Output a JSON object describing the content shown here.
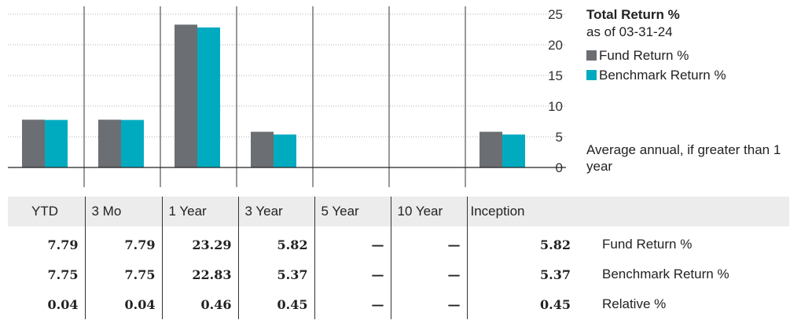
{
  "legend": {
    "title": "Total Return %",
    "subtitle": "as of 03-31-24",
    "items": [
      {
        "label": "Fund Return %",
        "color": "#6b6e72"
      },
      {
        "label": "Benchmark Return %",
        "color": "#00abc0"
      }
    ],
    "note": "Average annual, if greater than 1 year"
  },
  "chart_data": {
    "type": "bar",
    "categories": [
      "YTD",
      "3 Mo",
      "1 Year",
      "3 Year",
      "5 Year",
      "10 Year",
      "Inception"
    ],
    "series": [
      {
        "name": "Fund Return %",
        "color": "#6b6e72",
        "values": [
          7.79,
          7.79,
          23.29,
          5.82,
          null,
          null,
          5.82
        ]
      },
      {
        "name": "Benchmark Return %",
        "color": "#00abc0",
        "values": [
          7.75,
          7.75,
          22.83,
          5.37,
          null,
          null,
          5.37
        ]
      }
    ],
    "yticks": [
      "0",
      "5",
      "10",
      "15",
      "20",
      "25"
    ],
    "ylim": [
      0,
      25
    ],
    "grid": true,
    "y_axis_position": "right",
    "legend_position": "right"
  },
  "table": {
    "headers": [
      "YTD",
      "3 Mo",
      "1 Year",
      "3 Year",
      "5 Year",
      "10 Year",
      "Inception"
    ],
    "rows": [
      {
        "label": "Fund Return %",
        "values": [
          "7.79",
          "7.79",
          "23.29",
          "5.82",
          "—",
          "—",
          "5.82"
        ]
      },
      {
        "label": "Benchmark Return %",
        "values": [
          "7.75",
          "7.75",
          "22.83",
          "5.37",
          "—",
          "—",
          "5.37"
        ]
      },
      {
        "label": "Relative %",
        "values": [
          "0.04",
          "0.04",
          "0.46",
          "0.45",
          "—",
          "—",
          "0.45"
        ]
      }
    ]
  }
}
